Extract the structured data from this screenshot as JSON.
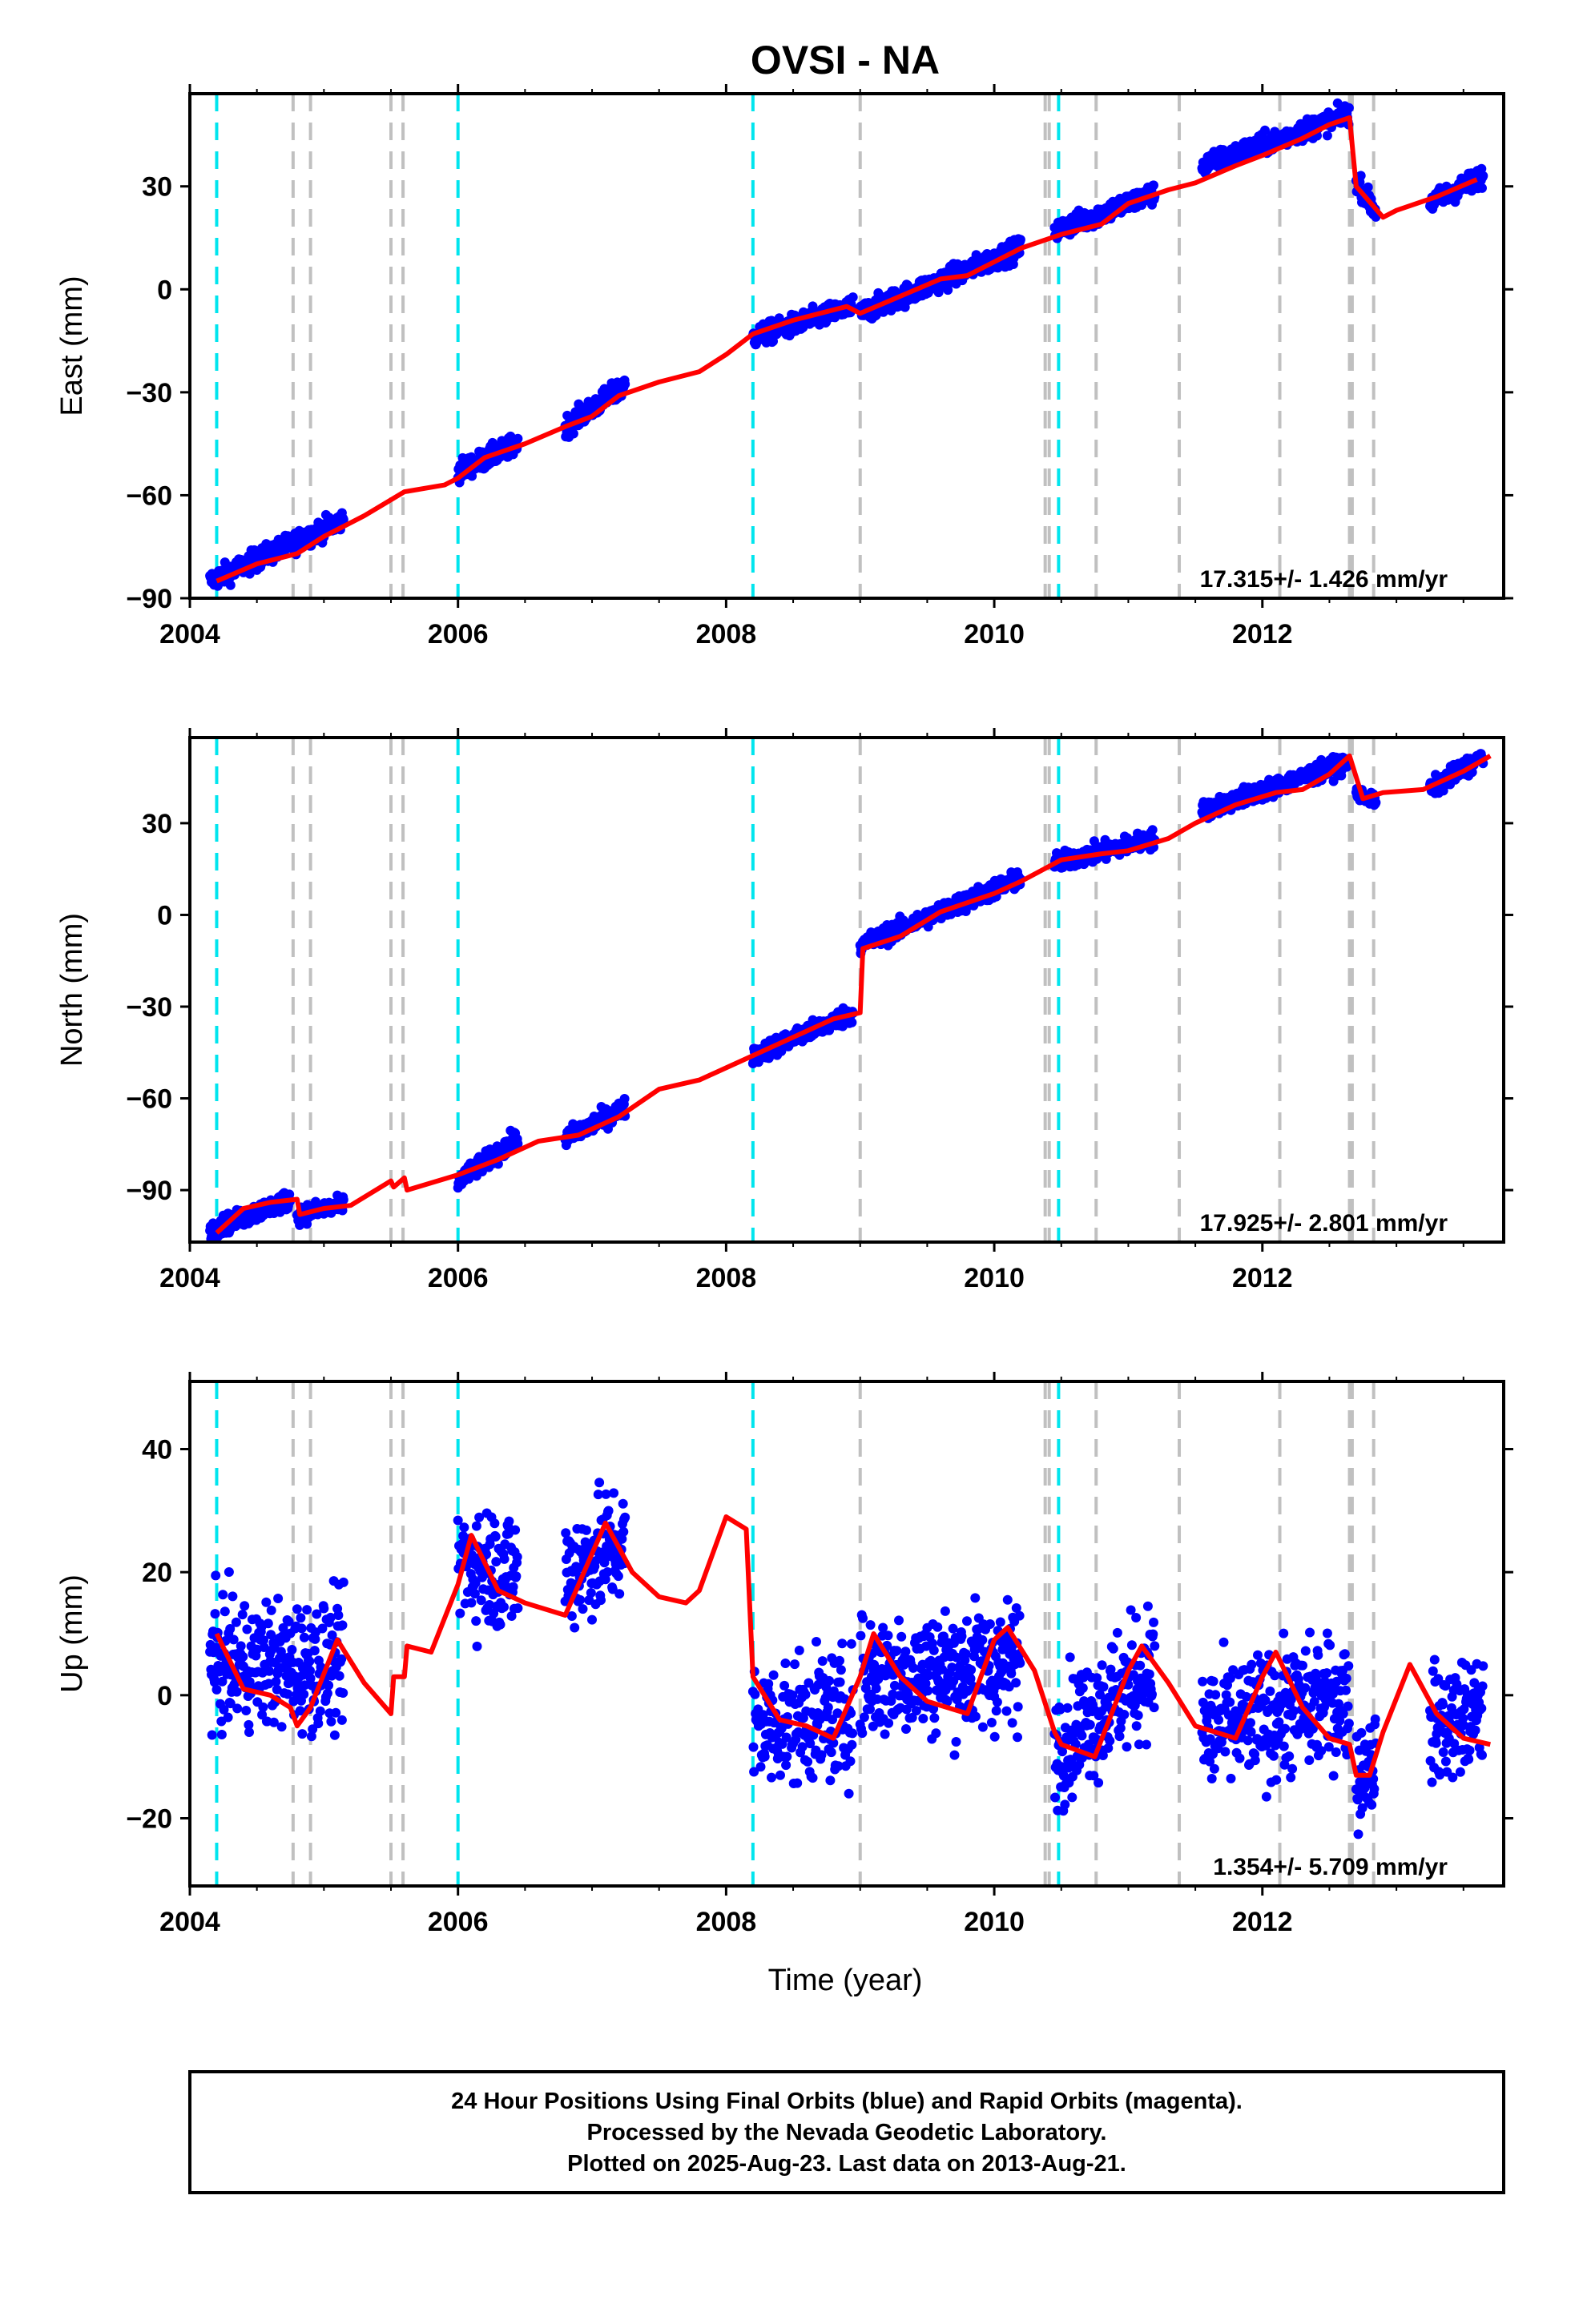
{
  "title": "OVSI - NA",
  "xlabel": "Time (year)",
  "footer": {
    "line1": "24 Hour Positions Using Final Orbits (blue) and Rapid Orbits (magenta).",
    "line2": "Processed by the Nevada Geodetic Laboratory.",
    "line3": "Plotted on 2025-Aug-23. Last data on 2013-Aug-21."
  },
  "colors": {
    "data": "#0000ff",
    "model": "#ff0000",
    "equipment_change": "#00e5ee",
    "earthquake": "#c0c0c0",
    "frame": "#000000"
  },
  "chart_data": [
    {
      "type": "scatter",
      "component": "east",
      "ylabel": "East (mm)",
      "xlim": [
        2004.0,
        2013.8
      ],
      "ylim": [
        -90,
        57
      ],
      "xticks": [
        2004,
        2006,
        2008,
        2010,
        2012
      ],
      "yticks": [
        -90,
        -60,
        -30,
        0,
        30
      ],
      "rate_text": "17.315+/- 1.426 mm/yr",
      "model": [
        [
          2004.2,
          -85
        ],
        [
          2004.5,
          -80
        ],
        [
          2004.8,
          -77
        ],
        [
          2005.0,
          -72
        ],
        [
          2005.3,
          -66
        ],
        [
          2005.6,
          -59
        ],
        [
          2005.9,
          -57
        ],
        [
          2006.0,
          -55
        ],
        [
          2006.2,
          -49
        ],
        [
          2006.5,
          -45
        ],
        [
          2006.8,
          -40
        ],
        [
          2007.0,
          -37
        ],
        [
          2007.2,
          -31
        ],
        [
          2007.5,
          -27
        ],
        [
          2007.8,
          -24
        ],
        [
          2008.0,
          -19
        ],
        [
          2008.2,
          -13
        ],
        [
          2008.5,
          -9
        ],
        [
          2008.9,
          -5
        ],
        [
          2009.0,
          -7
        ],
        [
          2009.3,
          -2
        ],
        [
          2009.6,
          3
        ],
        [
          2009.8,
          4
        ],
        [
          2010.0,
          8
        ],
        [
          2010.2,
          12
        ],
        [
          2010.5,
          16
        ],
        [
          2010.8,
          19
        ],
        [
          2011.0,
          25
        ],
        [
          2011.3,
          29
        ],
        [
          2011.5,
          31
        ],
        [
          2011.8,
          36
        ],
        [
          2012.0,
          39
        ],
        [
          2012.3,
          44
        ],
        [
          2012.5,
          48
        ],
        [
          2012.65,
          50
        ],
        [
          2012.7,
          30
        ],
        [
          2012.9,
          21
        ],
        [
          2013.0,
          23
        ],
        [
          2013.3,
          27
        ],
        [
          2013.6,
          32
        ]
      ],
      "segments": [
        {
          "start": 2004.15,
          "end": 2005.15,
          "v0": -85,
          "v1": -67,
          "spread": 3
        },
        {
          "start": 2006.0,
          "end": 2006.45,
          "v0": -53,
          "v1": -45,
          "spread": 3
        },
        {
          "start": 2006.8,
          "end": 2007.25,
          "v0": -40,
          "v1": -28,
          "spread": 3
        },
        {
          "start": 2008.2,
          "end": 2008.95,
          "v0": -14,
          "v1": -5,
          "spread": 3
        },
        {
          "start": 2009.0,
          "end": 2010.2,
          "v0": -7,
          "v1": 12,
          "spread": 3
        },
        {
          "start": 2010.45,
          "end": 2011.2,
          "v0": 17,
          "v1": 28,
          "spread": 3
        },
        {
          "start": 2011.55,
          "end": 2012.65,
          "v0": 36,
          "v1": 51,
          "spread": 3
        },
        {
          "start": 2012.7,
          "end": 2012.85,
          "v0": 32,
          "v1": 22,
          "spread": 3
        },
        {
          "start": 2013.25,
          "end": 2013.65,
          "v0": 25,
          "v1": 33,
          "spread": 3
        }
      ]
    },
    {
      "type": "scatter",
      "component": "north",
      "ylabel": "North (mm)",
      "xlim": [
        2004.0,
        2013.8
      ],
      "ylim": [
        -107,
        58
      ],
      "xticks": [
        2004,
        2006,
        2008,
        2010,
        2012
      ],
      "yticks": [
        -90,
        -60,
        -30,
        0,
        30
      ],
      "rate_text": "17.925+/- 2.801 mm/yr",
      "model": [
        [
          2004.2,
          -104
        ],
        [
          2004.4,
          -96
        ],
        [
          2004.6,
          -94
        ],
        [
          2004.8,
          -93
        ],
        [
          2004.82,
          -98
        ],
        [
          2005.0,
          -96
        ],
        [
          2005.2,
          -95
        ],
        [
          2005.5,
          -87
        ],
        [
          2005.52,
          -89
        ],
        [
          2005.6,
          -86
        ],
        [
          2005.62,
          -90
        ],
        [
          2006.0,
          -85
        ],
        [
          2006.3,
          -80
        ],
        [
          2006.6,
          -74
        ],
        [
          2006.9,
          -72
        ],
        [
          2007.2,
          -66
        ],
        [
          2007.5,
          -57
        ],
        [
          2007.8,
          -54
        ],
        [
          2008.0,
          -50
        ],
        [
          2008.2,
          -46
        ],
        [
          2008.5,
          -40
        ],
        [
          2008.8,
          -34
        ],
        [
          2009.0,
          -32
        ],
        [
          2009.02,
          -11
        ],
        [
          2009.3,
          -7
        ],
        [
          2009.6,
          1
        ],
        [
          2010.0,
          7
        ],
        [
          2010.2,
          11
        ],
        [
          2010.5,
          18
        ],
        [
          2010.8,
          20
        ],
        [
          2011.0,
          21
        ],
        [
          2011.3,
          25
        ],
        [
          2011.5,
          30
        ],
        [
          2011.8,
          36
        ],
        [
          2012.1,
          40
        ],
        [
          2012.3,
          41
        ],
        [
          2012.5,
          46
        ],
        [
          2012.65,
          52
        ],
        [
          2012.75,
          38
        ],
        [
          2012.9,
          40
        ],
        [
          2013.2,
          41
        ],
        [
          2013.5,
          47
        ],
        [
          2013.7,
          52
        ]
      ],
      "segments": [
        {
          "start": 2004.15,
          "end": 2004.75,
          "v0": -103,
          "v1": -93,
          "spread": 3
        },
        {
          "start": 2004.8,
          "end": 2005.15,
          "v0": -98,
          "v1": -95,
          "spread": 3
        },
        {
          "start": 2006.0,
          "end": 2006.45,
          "v0": -87,
          "v1": -73,
          "spread": 3
        },
        {
          "start": 2006.8,
          "end": 2007.25,
          "v0": -73,
          "v1": -63,
          "spread": 3
        },
        {
          "start": 2008.2,
          "end": 2008.95,
          "v0": -46,
          "v1": -32,
          "spread": 3
        },
        {
          "start": 2009.0,
          "end": 2010.2,
          "v0": -10,
          "v1": 12,
          "spread": 3
        },
        {
          "start": 2010.45,
          "end": 2011.2,
          "v0": 17,
          "v1": 25,
          "spread": 3
        },
        {
          "start": 2011.55,
          "end": 2012.65,
          "v0": 34,
          "v1": 50,
          "spread": 3
        },
        {
          "start": 2012.7,
          "end": 2012.85,
          "v0": 40,
          "v1": 37,
          "spread": 2
        },
        {
          "start": 2013.25,
          "end": 2013.65,
          "v0": 41,
          "v1": 52,
          "spread": 3
        }
      ]
    },
    {
      "type": "scatter",
      "component": "up",
      "ylabel": "Up (mm)",
      "xlim": [
        2004.0,
        2013.8
      ],
      "ylim": [
        -31,
        51
      ],
      "xticks": [
        2004,
        2006,
        2008,
        2010,
        2012
      ],
      "yticks": [
        -20,
        0,
        20,
        40
      ],
      "rate_text": "1.354+/- 5.709 mm/yr",
      "model": [
        [
          2004.2,
          10
        ],
        [
          2004.4,
          1
        ],
        [
          2004.6,
          0
        ],
        [
          2004.75,
          -2
        ],
        [
          2004.8,
          -5
        ],
        [
          2004.9,
          -2
        ],
        [
          2005.1,
          9
        ],
        [
          2005.3,
          2
        ],
        [
          2005.5,
          -3
        ],
        [
          2005.52,
          3
        ],
        [
          2005.6,
          3
        ],
        [
          2005.62,
          8
        ],
        [
          2005.8,
          7
        ],
        [
          2006.0,
          18
        ],
        [
          2006.1,
          26
        ],
        [
          2006.3,
          17
        ],
        [
          2006.5,
          15
        ],
        [
          2006.8,
          13
        ],
        [
          2007.0,
          23
        ],
        [
          2007.1,
          28
        ],
        [
          2007.3,
          20
        ],
        [
          2007.5,
          16
        ],
        [
          2007.7,
          15
        ],
        [
          2007.8,
          17
        ],
        [
          2008.0,
          29
        ],
        [
          2008.15,
          27
        ],
        [
          2008.2,
          3
        ],
        [
          2008.4,
          -4
        ],
        [
          2008.6,
          -5
        ],
        [
          2008.8,
          -7
        ],
        [
          2009.0,
          3
        ],
        [
          2009.1,
          10
        ],
        [
          2009.3,
          3
        ],
        [
          2009.5,
          -1
        ],
        [
          2009.8,
          -3
        ],
        [
          2010.0,
          9
        ],
        [
          2010.1,
          11
        ],
        [
          2010.3,
          4
        ],
        [
          2010.45,
          -6
        ],
        [
          2010.5,
          -8
        ],
        [
          2010.75,
          -10
        ],
        [
          2011.0,
          4
        ],
        [
          2011.1,
          8
        ],
        [
          2011.3,
          2
        ],
        [
          2011.5,
          -5
        ],
        [
          2011.8,
          -7
        ],
        [
          2012.0,
          3
        ],
        [
          2012.1,
          7
        ],
        [
          2012.3,
          -2
        ],
        [
          2012.5,
          -7
        ],
        [
          2012.65,
          -8
        ],
        [
          2012.7,
          -13
        ],
        [
          2012.8,
          -13
        ],
        [
          2012.9,
          -6
        ],
        [
          2013.1,
          5
        ],
        [
          2013.3,
          -3
        ],
        [
          2013.5,
          -7
        ],
        [
          2013.7,
          -8
        ]
      ],
      "segments": [
        {
          "start": 2004.15,
          "end": 2005.15,
          "v0": 5,
          "v1": 5,
          "spread": 10
        },
        {
          "start": 2006.0,
          "end": 2006.45,
          "v0": 22,
          "v1": 20,
          "spread": 10
        },
        {
          "start": 2006.8,
          "end": 2007.25,
          "v0": 20,
          "v1": 25,
          "spread": 10
        },
        {
          "start": 2008.2,
          "end": 2008.95,
          "v0": -5,
          "v1": -3,
          "spread": 10
        },
        {
          "start": 2009.0,
          "end": 2010.2,
          "v0": 3,
          "v1": 5,
          "spread": 10
        },
        {
          "start": 2010.45,
          "end": 2011.2,
          "v0": -8,
          "v1": 5,
          "spread": 10
        },
        {
          "start": 2011.55,
          "end": 2012.65,
          "v0": -6,
          "v1": 0,
          "spread": 10
        },
        {
          "start": 2012.7,
          "end": 2012.85,
          "v0": -14,
          "v1": -10,
          "spread": 8
        },
        {
          "start": 2013.25,
          "end": 2013.65,
          "v0": -5,
          "v1": -3,
          "spread": 9
        }
      ]
    }
  ],
  "vertical_lines": {
    "equipment_change": [
      2004.2,
      2006.0,
      2008.2,
      2010.48
    ],
    "earthquake": [
      2004.77,
      2004.9,
      2005.5,
      2005.59,
      2009.0,
      2010.38,
      2010.41,
      2010.76,
      2011.38,
      2012.13,
      2012.65,
      2012.67,
      2012.83
    ]
  }
}
